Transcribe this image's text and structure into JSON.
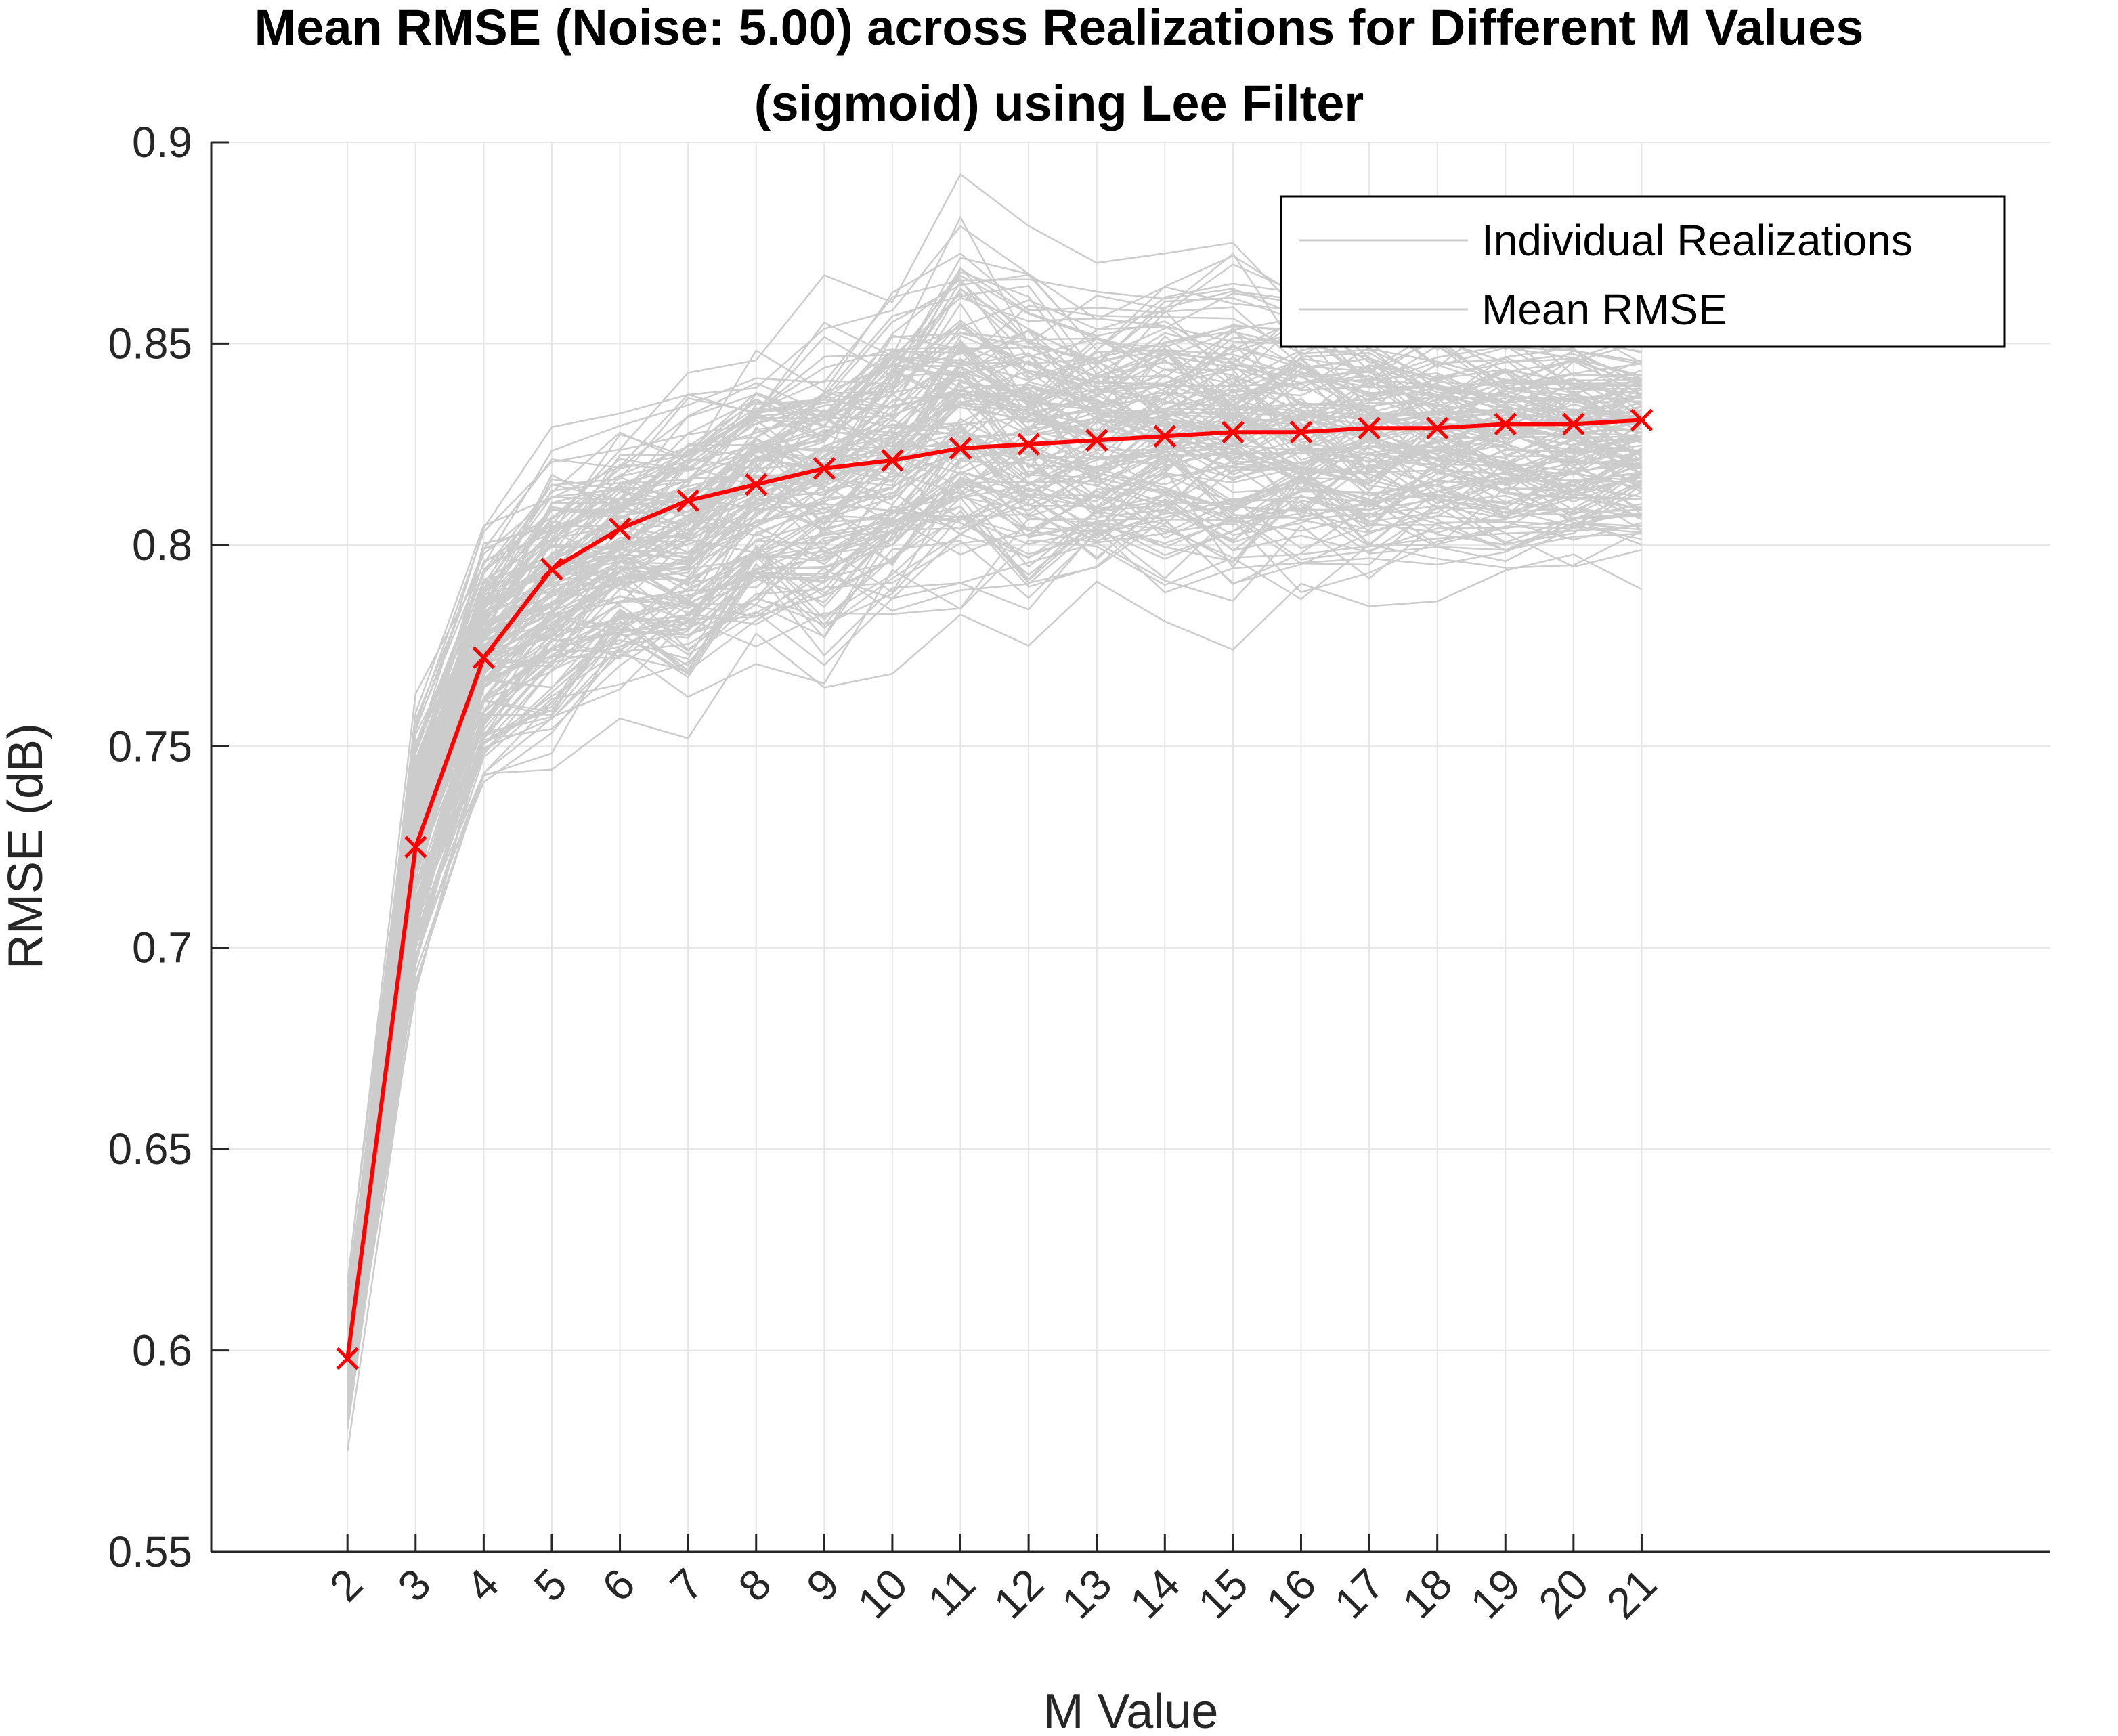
{
  "chart_data": {
    "type": "line",
    "title_line1": "Mean RMSE (Noise: 5.00) across Realizations for Different M Values",
    "title_line2": "(sigmoid) using Lee Filter",
    "xlabel": "M Value",
    "ylabel": "RMSE (dB)",
    "xlim": [
      0,
      27
    ],
    "ylim": [
      0.55,
      0.9
    ],
    "grid": true,
    "x": [
      2,
      3,
      4,
      5,
      6,
      7,
      8,
      9,
      10,
      11,
      12,
      13,
      14,
      15,
      16,
      17,
      18,
      19,
      20,
      21
    ],
    "x_tick_labels": [
      "2",
      "3",
      "4",
      "5",
      "6",
      "7",
      "8",
      "9",
      "10",
      "11",
      "12",
      "13",
      "14",
      "15",
      "16",
      "17",
      "18",
      "19",
      "20",
      "21"
    ],
    "y_ticks": [
      0.55,
      0.6,
      0.65,
      0.7,
      0.75,
      0.8,
      0.85,
      0.9
    ],
    "y_tick_labels": [
      "0.55",
      "0.6",
      "0.65",
      "0.7",
      "0.75",
      "0.8",
      "0.85",
      "0.9"
    ],
    "legend": {
      "location": "top-right",
      "entries": [
        "Individual Realizations",
        "Mean RMSE"
      ]
    },
    "series": [
      {
        "name": "Mean RMSE",
        "color": "#ff0000",
        "marker": "x",
        "values": [
          0.598,
          0.725,
          0.772,
          0.794,
          0.804,
          0.811,
          0.815,
          0.819,
          0.821,
          0.824,
          0.825,
          0.826,
          0.827,
          0.828,
          0.828,
          0.829,
          0.829,
          0.83,
          0.83,
          0.831
        ]
      }
    ],
    "individual_realizations": {
      "name": "Individual Realizations",
      "color": "#cccccc",
      "band_min": [
        0.575,
        0.68,
        0.735,
        0.741,
        0.755,
        0.752,
        0.765,
        0.762,
        0.768,
        0.772,
        0.775,
        0.778,
        0.78,
        0.774,
        0.78,
        0.783,
        0.786,
        0.785,
        0.787,
        0.789
      ],
      "band_max": [
        0.62,
        0.77,
        0.812,
        0.835,
        0.84,
        0.85,
        0.86,
        0.867,
        0.877,
        0.892,
        0.88,
        0.874,
        0.878,
        0.882,
        0.875,
        0.87,
        0.868,
        0.866,
        0.864,
        0.862
      ]
    }
  }
}
